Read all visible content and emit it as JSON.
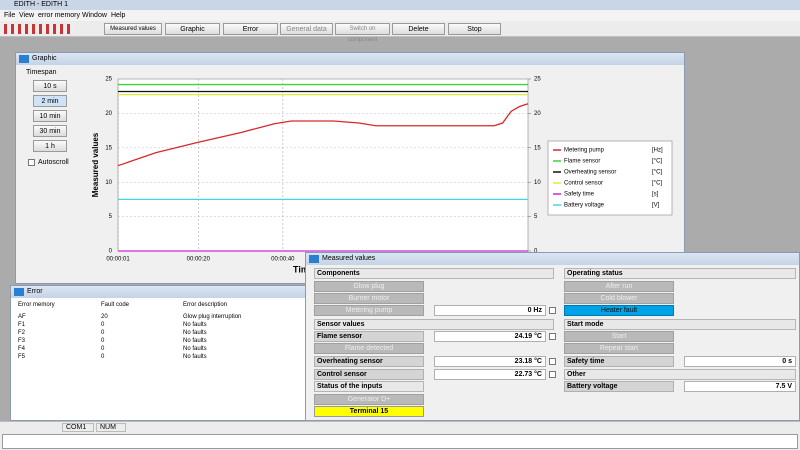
{
  "app": {
    "title": "EDITH - EDITH 1",
    "menu": [
      "File",
      "View",
      "error memory",
      "Window",
      "Help"
    ],
    "toolbar": [
      "Measured values",
      "Graphic",
      "Error",
      "General data",
      "Switch on component",
      "Delete",
      "Stop"
    ],
    "status_bar": [
      "COM1",
      "NUM"
    ]
  },
  "graphic_window": {
    "title": "Graphic",
    "timespan_label": "Timespan",
    "timespan_buttons": [
      "10 s",
      "2 min",
      "10 min",
      "30 min",
      "1 h"
    ],
    "autoscroll": "Autoscroll",
    "chart": {
      "type": "line",
      "y_label": "Measured values",
      "x_label": "Time",
      "xlim": [
        1,
        98
      ],
      "xticks": [
        {
          "value": 1,
          "label": "00:00:01"
        },
        {
          "value": 20,
          "label": "00:00:20"
        },
        {
          "value": 40,
          "label": "00:00:40"
        }
      ],
      "ylim": [
        0,
        25
      ],
      "yticks": [
        0,
        5,
        10,
        15,
        20,
        25
      ],
      "y2lim": [
        0,
        25
      ],
      "y2ticks": [
        0,
        5,
        10,
        15,
        20,
        25
      ],
      "grid": true,
      "series": [
        {
          "name": "Metering pump",
          "unit": "[Hz]",
          "color": "#d42a2a",
          "x": [
            1,
            10,
            20,
            30,
            38,
            42,
            52,
            58,
            62,
            90,
            92,
            94,
            96,
            98
          ],
          "values": [
            12.4,
            14.3,
            15.8,
            17.2,
            18.5,
            18.9,
            18.9,
            18.6,
            18.2,
            18.2,
            18.6,
            20.3,
            21.0,
            21.4
          ]
        },
        {
          "name": "Flame sensor",
          "unit": "[°C]",
          "color": "#3fd13f",
          "x": [
            1,
            98
          ],
          "values": [
            24.19,
            24.19
          ]
        },
        {
          "name": "Overheating sensor",
          "unit": "[°C]",
          "color": "#111111",
          "x": [
            1,
            98
          ],
          "values": [
            23.18,
            23.18
          ]
        },
        {
          "name": "Control sensor",
          "unit": "[°C]",
          "color": "#e6e640",
          "x": [
            1,
            98
          ],
          "values": [
            22.73,
            22.73
          ]
        },
        {
          "name": "Safety time",
          "unit": "[s]",
          "color": "#c62ad6",
          "x": [
            1,
            98
          ],
          "values": [
            0,
            0
          ]
        },
        {
          "name": "Battery voltage",
          "unit": "[V]",
          "color": "#40d8e0",
          "x": [
            1,
            98
          ],
          "values": [
            7.5,
            7.5
          ]
        }
      ]
    }
  },
  "error_window": {
    "title": "Error",
    "columns": [
      "Error memory",
      "Fault code",
      "Error description"
    ],
    "rows": [
      [
        "AF",
        "20",
        "Glow plug interruption"
      ],
      [
        "F1",
        "0",
        "No faults"
      ],
      [
        "F2",
        "0",
        "No faults"
      ],
      [
        "F3",
        "0",
        "No faults"
      ],
      [
        "F4",
        "0",
        "No faults"
      ],
      [
        "F5",
        "0",
        "No faults"
      ]
    ]
  },
  "measured_values_window": {
    "title": "Measured values",
    "components": {
      "header": "Components",
      "glow_plug": "Glow plug",
      "burner_motor": "Burner motor",
      "metering_pump": "Metering pump",
      "metering_pump_value": "0 Hz"
    },
    "sensor_values": {
      "header": "Sensor values",
      "flame_sensor": "Flame sensor",
      "flame_sensor_value": "24.19 °C",
      "flame_detected": "Flame detected",
      "overheating_sensor": "Overheating sensor",
      "overheating_sensor_value": "23.18 °C",
      "control_sensor": "Control sensor",
      "control_sensor_value": "22.73 °C"
    },
    "inputs": {
      "header": "Status of the inputs",
      "generator": "Generator D+",
      "terminal_15": "Terminal 15"
    },
    "operating_status": {
      "header": "Operating status",
      "after_run": "After run",
      "cold_blower": "Cold blower",
      "heater_fault": "Heater fault"
    },
    "start_mode": {
      "header": "Start mode",
      "start": "Start",
      "repeat_start": "Repeat start",
      "safety_time": "Safety time",
      "safety_time_value": "0 s"
    },
    "other": {
      "header": "Other",
      "battery_voltage": "Battery voltage",
      "battery_voltage_value": "7.5 V"
    }
  }
}
